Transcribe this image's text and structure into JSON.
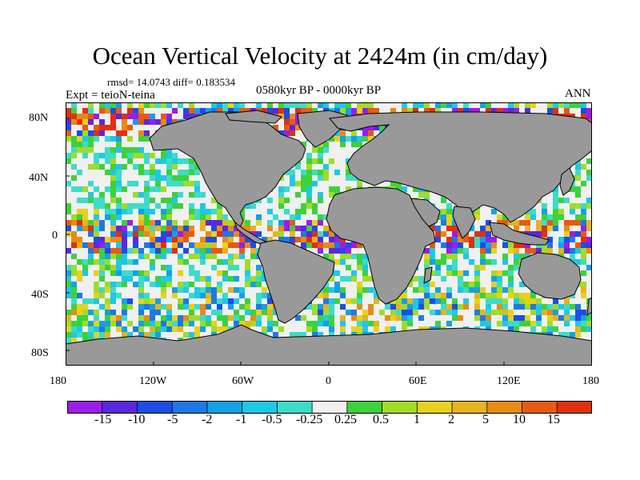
{
  "title": "Ocean Vertical Velocity at 2424m (in cm/day)",
  "stats": "rmsd= 14.0743 diff= 0.183534",
  "experiment": "Expt = teioN-teina",
  "period": "0580kyr BP - 0000kyr BP",
  "season": "ANN",
  "lat_ticks": [
    "80N",
    "40N",
    "0",
    "40S",
    "80S"
  ],
  "lon_ticks": [
    "180",
    "120W",
    "60W",
    "0",
    "60E",
    "120E",
    "180"
  ],
  "colorbar": {
    "labels": [
      "-15",
      "-10",
      "-5",
      "-2",
      "-1",
      "-0.5",
      "-0.25",
      "0.25",
      "0.5",
      "1",
      "2",
      "5",
      "10",
      "15"
    ],
    "colors": [
      "#9a1ee8",
      "#5a28e0",
      "#1e4ce6",
      "#1e78e6",
      "#14a0e6",
      "#1ec8e6",
      "#3cdcc8",
      "#f0f0f0",
      "#3cd23c",
      "#a0dc28",
      "#e6d21e",
      "#e6b41e",
      "#e68c14",
      "#e65a14",
      "#e0300e"
    ]
  },
  "colors": {
    "land": "#999999",
    "ocean_neutral": "#f0f0f0",
    "coast": "#000000"
  }
}
